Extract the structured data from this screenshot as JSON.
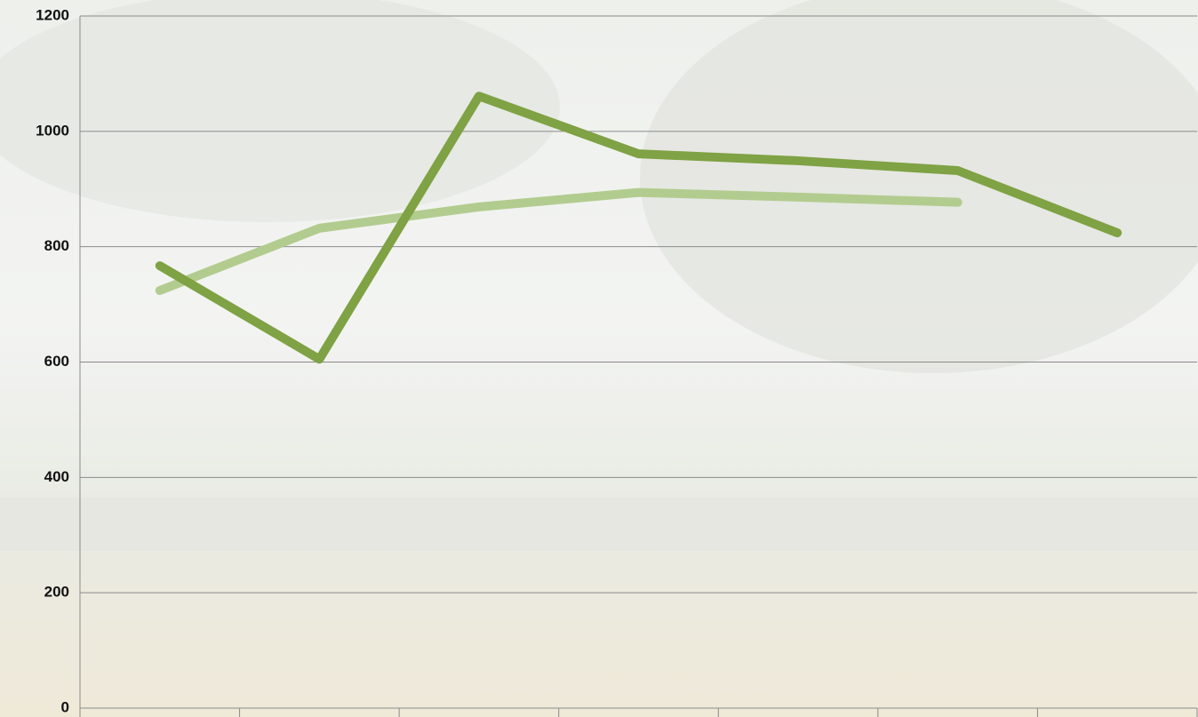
{
  "chart_data": {
    "type": "line",
    "categories": [
      null,
      null,
      null,
      null,
      null,
      null,
      null
    ],
    "series": [
      {
        "color": "#7fa244",
        "values": [
          767,
          605,
          1061,
          961,
          949,
          932,
          824
        ]
      },
      {
        "color": "#b2cc8f",
        "values": [
          724,
          832,
          869,
          894,
          886,
          877,
          null
        ]
      }
    ],
    "ylim": [
      0,
      1200
    ],
    "yticks": [
      0,
      200,
      400,
      600,
      800,
      1000,
      1200
    ],
    "grid": true
  }
}
